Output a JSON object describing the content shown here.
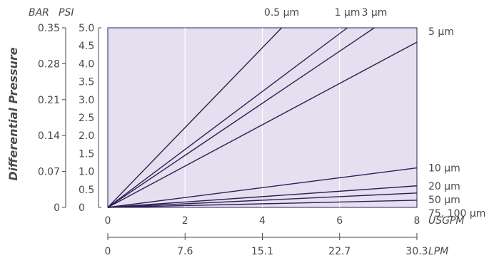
{
  "colors": {
    "plot_background": "#e4e0ef",
    "grid": "#ffffff",
    "line": "#2e1f57",
    "axis": "#4a4a4a",
    "text": "#4a4a4a"
  },
  "chart_data": {
    "type": "line",
    "title": "",
    "ylabel": "Differential Pressure",
    "units": {
      "bar": "BAR",
      "psi": "PSI",
      "usgpm": "USGPM",
      "lpm": "LPM"
    },
    "axes": {
      "x_usgpm": {
        "range": [
          0,
          8
        ],
        "ticks": [
          "0",
          "2",
          "4",
          "6",
          "8"
        ]
      },
      "x_lpm": {
        "ticks": [
          "0",
          "7.6",
          "15.1",
          "22.7",
          "30.3"
        ]
      },
      "y_psi": {
        "range": [
          0,
          5.0
        ],
        "ticks": [
          "0",
          "0.5",
          "1.0",
          "1.5",
          "2.0",
          "2.5",
          "3.0",
          "3.5",
          "4.0",
          "4.5",
          "5.0"
        ]
      },
      "y_bar": {
        "ticks": [
          "0",
          "0.07",
          "0.14",
          "0.21",
          "0.28",
          "0.35"
        ]
      }
    },
    "grid": true,
    "series": [
      {
        "name": "0.5 µm",
        "x": [
          0,
          4.5
        ],
        "y": [
          0,
          5.0
        ]
      },
      {
        "name": "1 µm",
        "x": [
          0,
          6.2
        ],
        "y": [
          0,
          5.0
        ]
      },
      {
        "name": "3 µm",
        "x": [
          0,
          6.9
        ],
        "y": [
          0,
          5.0
        ]
      },
      {
        "name": "5 µm",
        "x": [
          0,
          8
        ],
        "y": [
          0,
          4.6
        ]
      },
      {
        "name": "10 µm",
        "x": [
          0,
          8
        ],
        "y": [
          0,
          1.1
        ]
      },
      {
        "name": "20 µm",
        "x": [
          0,
          8
        ],
        "y": [
          0,
          0.6
        ]
      },
      {
        "name": "50 µm",
        "x": [
          0,
          8
        ],
        "y": [
          0,
          0.4
        ]
      },
      {
        "name": "75, 100 µm",
        "x": [
          0,
          8
        ],
        "y": [
          0,
          0.2
        ]
      }
    ]
  }
}
